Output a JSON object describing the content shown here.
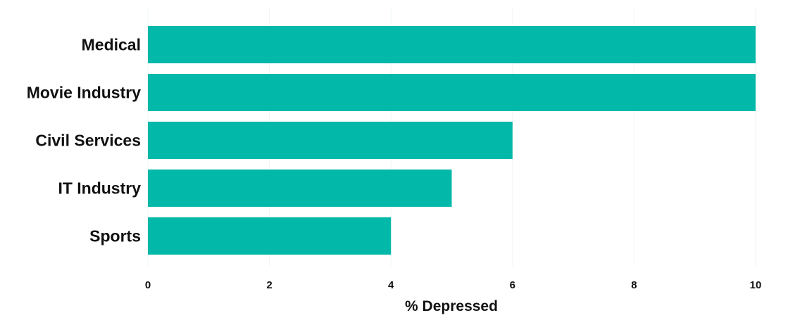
{
  "chart_data": {
    "type": "bar",
    "orientation": "horizontal",
    "categories": [
      "Medical",
      "Movie Industry",
      "Civil Services",
      "IT Industry",
      "Sports"
    ],
    "values": [
      10,
      10,
      6,
      5,
      4
    ],
    "xlabel": "% Depressed",
    "ylabel": "",
    "title": "",
    "xlim": [
      0,
      10
    ],
    "xticks": [
      "0",
      "2",
      "4",
      "6",
      "8",
      "10"
    ],
    "grid": "vertical",
    "bar_color": "#02b8a9",
    "grid_color": "#eef6f4"
  }
}
